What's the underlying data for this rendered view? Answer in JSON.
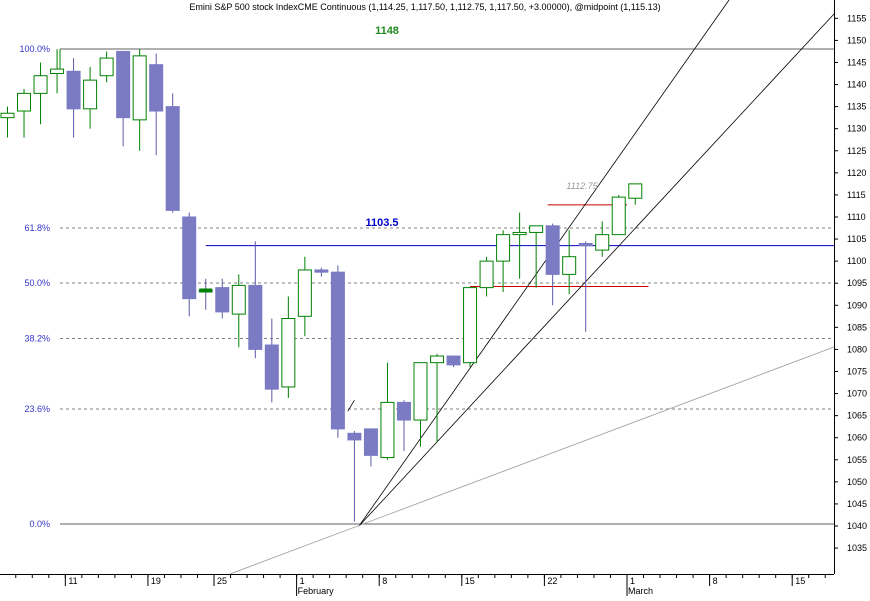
{
  "chart_data": {
    "type": "candlestick",
    "title": "Emini S&P 500 stock IndexCME Continuous (1,114.25, 1,117.50, 1,112.75, 1,117.50, +3.00000), @midpoint (1,115.13)",
    "y_ticks": [
      1035,
      1040,
      1045,
      1050,
      1055,
      1060,
      1065,
      1070,
      1075,
      1080,
      1085,
      1090,
      1095,
      1100,
      1105,
      1110,
      1115,
      1120,
      1125,
      1130,
      1135,
      1140,
      1145,
      1150,
      1155
    ],
    "ylim": [
      1031,
      1157
    ],
    "x_ticks": [
      {
        "i": 4,
        "label": "11"
      },
      {
        "i": 9,
        "label": "19"
      },
      {
        "i": 13,
        "label": "25"
      },
      {
        "i": 18,
        "label": "1"
      },
      {
        "i": 23,
        "label": "8"
      },
      {
        "i": 28,
        "label": "15"
      },
      {
        "i": 33,
        "label": "22"
      },
      {
        "i": 38,
        "label": "1"
      },
      {
        "i": 43,
        "label": "8"
      },
      {
        "i": 48,
        "label": "15"
      }
    ],
    "month_labels": [
      {
        "i": 18,
        "label": "February"
      },
      {
        "i": 38,
        "label": "March"
      }
    ],
    "fib_levels": [
      {
        "label": "100.0%",
        "value": 1148
      },
      {
        "label": "61.8%",
        "value": 1107.5
      },
      {
        "label": "50.0%",
        "value": 1095
      },
      {
        "label": "38.2%",
        "value": 1082.5
      },
      {
        "label": "23.6%",
        "value": 1066.5
      },
      {
        "label": "0.0%",
        "value": 1040.5
      }
    ],
    "annotations": [
      {
        "text": "1148",
        "color": "#228b22"
      },
      {
        "text": "1103.5",
        "color": "#0000cc"
      },
      {
        "text": "1112.75",
        "color": "#999999"
      }
    ],
    "candles": [
      {
        "i": 0,
        "o": 1132.5,
        "h": 1135,
        "l": 1128,
        "c": 1133.5
      },
      {
        "i": 1,
        "o": 1134,
        "h": 1139,
        "l": 1128,
        "c": 1138
      },
      {
        "i": 2,
        "o": 1138,
        "h": 1145,
        "l": 1131,
        "c": 1142
      },
      {
        "i": 3,
        "o": 1142.5,
        "h": 1148,
        "l": 1138,
        "c": 1143.5
      },
      {
        "i": 4,
        "o": 1143,
        "h": 1146,
        "l": 1128,
        "c": 1134.5
      },
      {
        "i": 5,
        "o": 1134.5,
        "h": 1144,
        "l": 1130,
        "c": 1141
      },
      {
        "i": 6,
        "o": 1142,
        "h": 1147.5,
        "l": 1140.5,
        "c": 1146
      },
      {
        "i": 7,
        "o": 1147.5,
        "h": 1147.5,
        "l": 1126,
        "c": 1132.5
      },
      {
        "i": 8,
        "o": 1132,
        "h": 1148,
        "l": 1125,
        "c": 1146.5
      },
      {
        "i": 9,
        "o": 1144.5,
        "h": 1147,
        "l": 1124,
        "c": 1134
      },
      {
        "i": 10,
        "o": 1135,
        "h": 1138,
        "l": 1111,
        "c": 1111.5
      },
      {
        "i": 11,
        "o": 1110,
        "h": 1111,
        "l": 1087.5,
        "c": 1091.5
      },
      {
        "i": 12,
        "o": 1093.5,
        "h": 1096,
        "l": 1089,
        "c": 1093
      },
      {
        "i": 13,
        "o": 1094,
        "h": 1096,
        "l": 1087,
        "c": 1088.5
      },
      {
        "i": 14,
        "o": 1088,
        "h": 1097,
        "l": 1080.5,
        "c": 1094.5
      },
      {
        "i": 15,
        "o": 1094.5,
        "h": 1104.5,
        "l": 1078,
        "c": 1080
      },
      {
        "i": 16,
        "o": 1081,
        "h": 1087,
        "l": 1068,
        "c": 1071
      },
      {
        "i": 17,
        "o": 1071.5,
        "h": 1092,
        "l": 1069,
        "c": 1087
      },
      {
        "i": 18,
        "o": 1087.5,
        "h": 1101,
        "l": 1083,
        "c": 1098
      },
      {
        "i": 19,
        "o": 1098,
        "h": 1098.5,
        "l": 1096.5,
        "c": 1097.5
      },
      {
        "i": 20,
        "o": 1097.5,
        "h": 1099,
        "l": 1060,
        "c": 1062
      },
      {
        "i": 21,
        "o": 1061,
        "h": 1061.5,
        "l": 1041,
        "c": 1059.5
      },
      {
        "i": 22,
        "o": 1062,
        "h": 1062,
        "l": 1053.5,
        "c": 1056
      },
      {
        "i": 23,
        "o": 1055.5,
        "h": 1077,
        "l": 1055,
        "c": 1068
      },
      {
        "i": 24,
        "o": 1068,
        "h": 1068.5,
        "l": 1057,
        "c": 1064
      },
      {
        "i": 25,
        "o": 1064,
        "h": 1077,
        "l": 1058,
        "c": 1077
      },
      {
        "i": 26,
        "o": 1077,
        "h": 1079,
        "l": 1059,
        "c": 1078.5
      },
      {
        "i": 27,
        "o": 1078.5,
        "h": 1078.5,
        "l": 1076,
        "c": 1076.5
      },
      {
        "i": 28,
        "o": 1077,
        "h": 1094,
        "l": 1076,
        "c": 1094
      },
      {
        "i": 29,
        "o": 1094,
        "h": 1101,
        "l": 1092,
        "c": 1100
      },
      {
        "i": 30,
        "o": 1100,
        "h": 1107,
        "l": 1093,
        "c": 1106
      },
      {
        "i": 31,
        "o": 1106,
        "h": 1111,
        "l": 1096,
        "c": 1106.5
      },
      {
        "i": 32,
        "o": 1106.5,
        "h": 1108,
        "l": 1094,
        "c": 1108
      },
      {
        "i": 33,
        "o": 1108,
        "h": 1108.5,
        "l": 1090,
        "c": 1097
      },
      {
        "i": 34,
        "o": 1097,
        "h": 1107,
        "l": 1092.5,
        "c": 1101
      },
      {
        "i": 35,
        "o": 1104,
        "h": 1104.5,
        "l": 1084,
        "c": 1103.5
      },
      {
        "i": 36,
        "o": 1102.5,
        "h": 1109,
        "l": 1101,
        "c": 1106
      },
      {
        "i": 37,
        "o": 1106,
        "h": 1115,
        "l": 1106,
        "c": 1114.5
      },
      {
        "i": 38,
        "o": 1114.25,
        "h": 1117.5,
        "l": 1112.75,
        "c": 1117.5
      }
    ],
    "colors": {
      "up_border": "#008000",
      "down_fill": "#7b7bc4",
      "fib_label": "#3333cc",
      "blue_line": "#0000cc",
      "red_line": "#cc0000",
      "channel": "#000000",
      "grid": "#808080"
    }
  }
}
